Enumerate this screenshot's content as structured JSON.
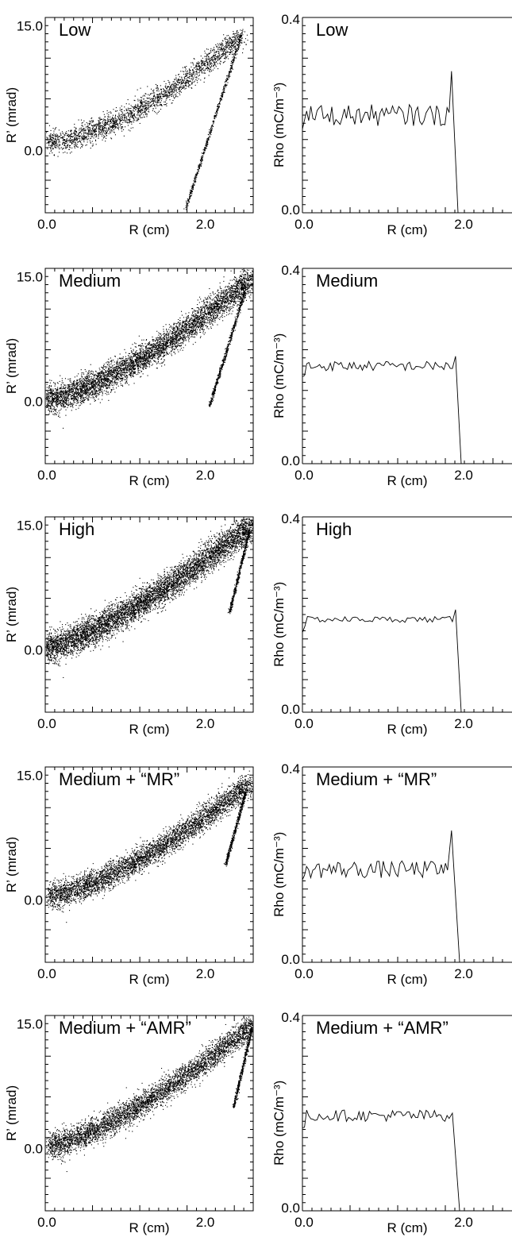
{
  "colors": {
    "ink": "#000000",
    "background": "#ffffff"
  },
  "chart_data": [
    {
      "type": "scatter",
      "panel": "phase-space",
      "label": "Low",
      "xlabel": "R (cm)",
      "ylabel": "R’ (mrad)",
      "xlim": [
        0.0,
        2.6
      ],
      "ylim": [
        -7.5,
        16.0
      ],
      "xticks": [
        "0.0",
        "2.0"
      ],
      "yticks": [
        "15.0",
        "0.0"
      ],
      "band": {
        "x_start": 0.0,
        "x_end": 2.45,
        "y_start": 1.0,
        "y_end": 14.0,
        "curvature": 1.6,
        "half_width": [
          1.3,
          1.0
        ],
        "points": 2400
      },
      "stem": {
        "x_top": 2.45,
        "y_top": 14.0,
        "x_bottom": 1.75,
        "y_bottom": -7.0,
        "points": 600
      },
      "grid": false
    },
    {
      "type": "line",
      "panel": "density",
      "label": "Low",
      "xlabel": "R (cm)",
      "ylabel": "Rho (mC/m⁻³)",
      "xlim": [
        0.0,
        2.6
      ],
      "ylim": [
        0.0,
        0.4
      ],
      "xticks": [
        "0.0",
        "2.0"
      ],
      "yticks": [
        "0.4",
        "0.0"
      ],
      "profile": {
        "x_start": 0.0,
        "x_end": 1.82,
        "base": 0.2,
        "noise": 0.022,
        "edge_peak": 0.29,
        "edge_x": 1.85,
        "cut_x": 1.93,
        "tail_end": 2.6,
        "points": 70
      },
      "grid": false
    },
    {
      "type": "scatter",
      "panel": "phase-space",
      "label": "Medium",
      "xlabel": "R (cm)",
      "ylabel": "R’ (mrad)",
      "xlim": [
        0.0,
        2.6
      ],
      "ylim": [
        -7.5,
        16.0
      ],
      "xticks": [
        "0.0",
        "2.0"
      ],
      "yticks": [
        "15.0",
        "0.0"
      ],
      "band": {
        "x_start": 0.0,
        "x_end": 2.58,
        "y_start": 0.2,
        "y_end": 14.8,
        "curvature": 1.4,
        "half_width": [
          1.5,
          1.4
        ],
        "points": 5200
      },
      "stem": {
        "x_top": 2.5,
        "y_top": 13.5,
        "x_bottom": 2.05,
        "y_bottom": -0.5,
        "points": 600
      },
      "grid": false
    },
    {
      "type": "line",
      "panel": "density",
      "label": "Medium",
      "xlabel": "R (cm)",
      "ylabel": "Rho (mC/m⁻³)",
      "xlim": [
        0.0,
        2.6
      ],
      "ylim": [
        0.0,
        0.4
      ],
      "xticks": [
        "0.0",
        "2.0"
      ],
      "yticks": [
        "0.4",
        "0.0"
      ],
      "profile": {
        "x_start": 0.0,
        "x_end": 1.86,
        "base": 0.2,
        "noise": 0.01,
        "edge_peak": 0.22,
        "edge_x": 1.9,
        "cut_x": 1.97,
        "tail_end": 2.6,
        "points": 70
      },
      "grid": false
    },
    {
      "type": "scatter",
      "panel": "phase-space",
      "label": "High",
      "xlabel": "R (cm)",
      "ylabel": "R’ (mrad)",
      "xlim": [
        0.0,
        2.6
      ],
      "ylim": [
        -7.5,
        16.0
      ],
      "xticks": [
        "0.0",
        "2.0"
      ],
      "yticks": [
        "15.0",
        "0.0"
      ],
      "band": {
        "x_start": 0.0,
        "x_end": 2.6,
        "y_start": 0.2,
        "y_end": 15.2,
        "curvature": 1.3,
        "half_width": [
          1.6,
          1.5
        ],
        "points": 6000
      },
      "stem": {
        "x_top": 2.55,
        "y_top": 14.5,
        "x_bottom": 2.3,
        "y_bottom": 4.5,
        "points": 500
      },
      "grid": false
    },
    {
      "type": "line",
      "panel": "density",
      "label": "High",
      "xlabel": "R (cm)",
      "ylabel": "Rho (mC/m⁻³)",
      "xlim": [
        0.0,
        2.6
      ],
      "ylim": [
        0.0,
        0.4
      ],
      "xticks": [
        "0.0",
        "2.0"
      ],
      "yticks": [
        "0.4",
        "0.0"
      ],
      "profile": {
        "x_start": 0.0,
        "x_end": 1.86,
        "base": 0.19,
        "noise": 0.006,
        "edge_peak": 0.21,
        "edge_x": 1.9,
        "cut_x": 1.97,
        "tail_end": 1.97,
        "points": 60
      },
      "grid": false
    },
    {
      "type": "scatter",
      "panel": "phase-space",
      "label": "Medium + “MR”",
      "xlabel": "R (cm)",
      "ylabel": "R’ (mrad)",
      "xlim": [
        0.0,
        2.6
      ],
      "ylim": [
        -7.5,
        16.0
      ],
      "xticks": [
        "0.0",
        "2.0"
      ],
      "yticks": [
        "15.0",
        "0.0"
      ],
      "band": {
        "x_start": 0.05,
        "x_end": 2.55,
        "y_start": 0.5,
        "y_end": 14.0,
        "curvature": 1.4,
        "half_width": [
          1.4,
          1.2
        ],
        "points": 4400
      },
      "stem": {
        "x_top": 2.5,
        "y_top": 13.0,
        "x_bottom": 2.25,
        "y_bottom": 4.2,
        "points": 500
      },
      "grid": false
    },
    {
      "type": "line",
      "panel": "density",
      "label": "Medium + “MR”",
      "xlabel": "R (cm)",
      "ylabel": "Rho (mC/m⁻³)",
      "xlim": [
        0.0,
        2.6
      ],
      "ylim": [
        0.0,
        0.4
      ],
      "xticks": [
        "0.0",
        "2.0"
      ],
      "yticks": [
        "0.4",
        "0.0"
      ],
      "profile": {
        "x_start": 0.0,
        "x_end": 1.8,
        "base": 0.19,
        "noise": 0.018,
        "edge_peak": 0.27,
        "edge_x": 1.85,
        "cut_x": 1.95,
        "tail_end": 1.95,
        "points": 70
      },
      "grid": false
    },
    {
      "type": "scatter",
      "panel": "phase-space",
      "label": "Medium + “AMR”",
      "xlabel": "R (cm)",
      "ylabel": "R’ (mrad)",
      "xlim": [
        0.0,
        2.6
      ],
      "ylim": [
        -7.5,
        16.0
      ],
      "xticks": [
        "0.0",
        "2.0"
      ],
      "yticks": [
        "15.0",
        "0.0"
      ],
      "band": {
        "x_start": 0.05,
        "x_end": 2.6,
        "y_start": 0.3,
        "y_end": 15.0,
        "curvature": 1.35,
        "half_width": [
          1.4,
          1.2
        ],
        "points": 4400
      },
      "stem": {
        "x_top": 2.58,
        "y_top": 14.5,
        "x_bottom": 2.35,
        "y_bottom": 5.0,
        "points": 500
      },
      "grid": false
    },
    {
      "type": "line",
      "panel": "density",
      "label": "Medium + “AMR”",
      "xlabel": "R (cm)",
      "ylabel": "Rho (mC/m⁻³)",
      "xlim": [
        0.0,
        2.6
      ],
      "ylim": [
        0.0,
        0.4
      ],
      "xticks": [
        "0.0",
        "2.0"
      ],
      "yticks": [
        "0.4",
        "0.0"
      ],
      "profile": {
        "x_start": 0.0,
        "x_end": 1.82,
        "base": 0.195,
        "noise": 0.012,
        "edge_peak": 0.2,
        "edge_x": 1.86,
        "cut_x": 1.95,
        "tail_end": 1.95,
        "points": 70
      },
      "grid": false
    }
  ]
}
